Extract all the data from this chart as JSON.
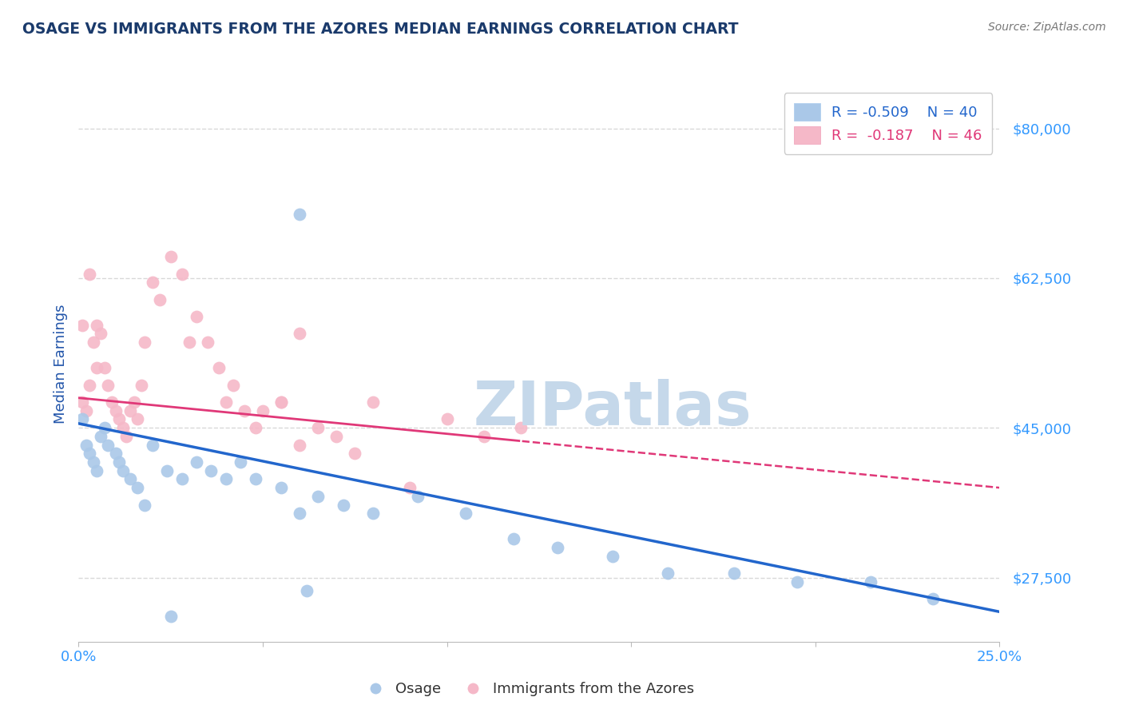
{
  "title": "OSAGE VS IMMIGRANTS FROM THE AZORES MEDIAN EARNINGS CORRELATION CHART",
  "source": "Source: ZipAtlas.com",
  "ylabel": "Median Earnings",
  "xlim": [
    0.0,
    0.25
  ],
  "ylim": [
    20000,
    85000
  ],
  "yticks": [
    27500,
    45000,
    62500,
    80000
  ],
  "ytick_labels": [
    "$27,500",
    "$45,000",
    "$62,500",
    "$80,000"
  ],
  "xticks": [
    0.0,
    0.05,
    0.1,
    0.15,
    0.2,
    0.25
  ],
  "xtick_labels": [
    "0.0%",
    "",
    "",
    "",
    "",
    "25.0%"
  ],
  "background_color": "#ffffff",
  "plot_bg_color": "#ffffff",
  "grid_color": "#d8d8d8",
  "watermark": "ZIPatlas",
  "watermark_color": "#c5d8ea",
  "title_color": "#1a3a6b",
  "axis_label_color": "#2255aa",
  "tick_label_color": "#3399ff",
  "source_color": "#777777",
  "legend_label1": "R = -0.509    N = 40",
  "legend_label2": "R =  -0.187    N = 46",
  "series1_color": "#aac8e8",
  "series2_color": "#f5b8c8",
  "line1_color": "#2266cc",
  "line2_color": "#e03878",
  "line1_intercept": 45500,
  "line1_slope": -88000,
  "line2_intercept": 48500,
  "line2_slope": -42000,
  "line2_solid_end": 0.12,
  "osage_x": [
    0.001,
    0.002,
    0.003,
    0.004,
    0.005,
    0.006,
    0.007,
    0.008,
    0.01,
    0.011,
    0.012,
    0.014,
    0.016,
    0.018,
    0.02,
    0.024,
    0.028,
    0.032,
    0.036,
    0.04,
    0.044,
    0.048,
    0.055,
    0.06,
    0.065,
    0.072,
    0.08,
    0.092,
    0.105,
    0.118,
    0.13,
    0.145,
    0.16,
    0.178,
    0.195,
    0.215,
    0.232,
    0.06,
    0.062,
    0.025
  ],
  "osage_y": [
    46000,
    43000,
    42000,
    41000,
    40000,
    44000,
    45000,
    43000,
    42000,
    41000,
    40000,
    39000,
    38000,
    36000,
    43000,
    40000,
    39000,
    41000,
    40000,
    39000,
    41000,
    39000,
    38000,
    35000,
    37000,
    36000,
    35000,
    37000,
    35000,
    32000,
    31000,
    30000,
    28000,
    28000,
    27000,
    27000,
    25000,
    70000,
    26000,
    23000
  ],
  "azores_x": [
    0.001,
    0.002,
    0.003,
    0.004,
    0.005,
    0.006,
    0.007,
    0.008,
    0.009,
    0.01,
    0.011,
    0.012,
    0.013,
    0.014,
    0.015,
    0.016,
    0.017,
    0.018,
    0.02,
    0.022,
    0.025,
    0.028,
    0.03,
    0.032,
    0.035,
    0.038,
    0.04,
    0.042,
    0.045,
    0.048,
    0.05,
    0.055,
    0.06,
    0.065,
    0.07,
    0.075,
    0.08,
    0.09,
    0.1,
    0.11,
    0.12,
    0.06,
    0.055,
    0.001,
    0.003,
    0.005
  ],
  "azores_y": [
    48000,
    47000,
    50000,
    55000,
    57000,
    56000,
    52000,
    50000,
    48000,
    47000,
    46000,
    45000,
    44000,
    47000,
    48000,
    46000,
    50000,
    55000,
    62000,
    60000,
    65000,
    63000,
    55000,
    58000,
    55000,
    52000,
    48000,
    50000,
    47000,
    45000,
    47000,
    48000,
    43000,
    45000,
    44000,
    42000,
    48000,
    38000,
    46000,
    44000,
    45000,
    56000,
    48000,
    57000,
    63000,
    52000
  ]
}
